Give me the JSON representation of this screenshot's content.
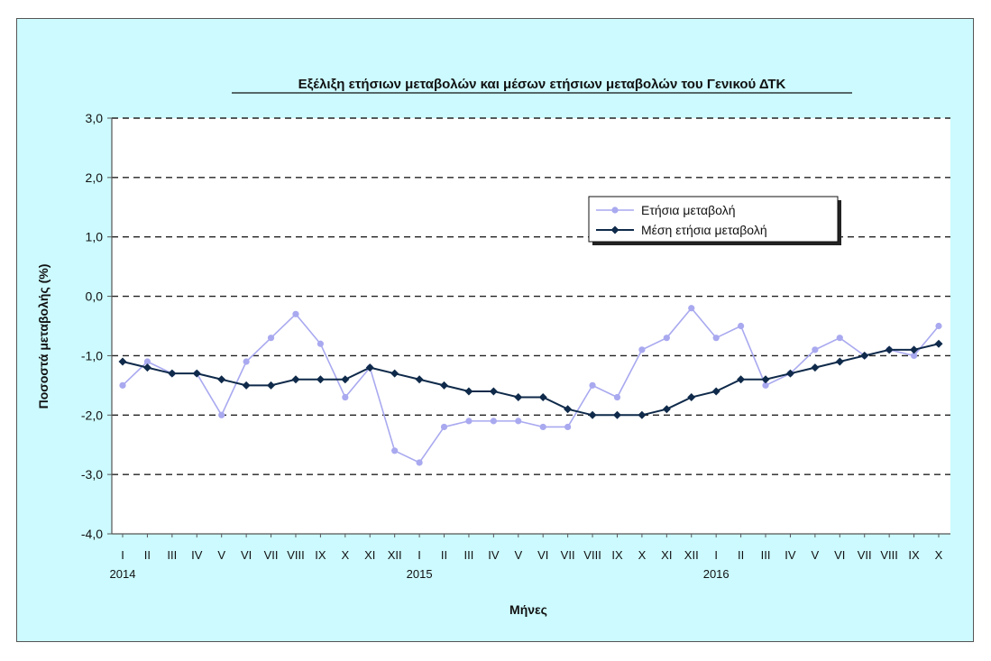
{
  "chart_data": {
    "type": "line",
    "title": "Εξέλιξη ετήσιων μεταβολών και μέσων ετήσιων μεταβολών του Γενικού ΔΤΚ",
    "xlabel": "Μήνες",
    "ylabel": "Ποσοστά μεταβολής (%)",
    "ylim": [
      -4.0,
      3.0
    ],
    "yticks": [
      "3,0",
      "2,0",
      "1,0",
      "0,0",
      "-1,0",
      "-2,0",
      "-3,0",
      "-4,0"
    ],
    "ytick_values": [
      3,
      2,
      1,
      0,
      -1,
      -2,
      -3,
      -4
    ],
    "grid": "horizontal dashed",
    "legend_position": "top-right",
    "x": [
      "I",
      "II",
      "III",
      "IV",
      "V",
      "VI",
      "VII",
      "VIII",
      "IX",
      "X",
      "XI",
      "XII",
      "I",
      "II",
      "III",
      "IV",
      "V",
      "VI",
      "VII",
      "VIII",
      "IX",
      "X",
      "XI",
      "XII",
      "I",
      "II",
      "III",
      "IV",
      "V",
      "VI",
      "VII",
      "VIII",
      "IX",
      "X"
    ],
    "years": [
      {
        "label": "2014",
        "index": 0
      },
      {
        "label": "2015",
        "index": 12
      },
      {
        "label": "2016",
        "index": 24
      }
    ],
    "series": [
      {
        "name": "Ετήσια μεταβολή",
        "color": "#a9a9f0",
        "values": [
          -1.5,
          -1.1,
          -1.3,
          -1.3,
          -2.0,
          -1.1,
          -0.7,
          -0.3,
          -0.8,
          -1.7,
          -1.2,
          -2.6,
          -2.8,
          -2.2,
          -2.1,
          -2.1,
          -2.1,
          -2.2,
          -2.2,
          -1.5,
          -1.7,
          -0.9,
          -0.7,
          -0.2,
          -0.7,
          -0.5,
          -1.5,
          -1.3,
          -0.9,
          -0.7,
          -1.0,
          -0.9,
          -1.0,
          -0.5
        ]
      },
      {
        "name": "Μέση ετήσια μεταβολή",
        "color": "#0f2a4a",
        "values": [
          -1.1,
          -1.2,
          -1.3,
          -1.3,
          -1.4,
          -1.5,
          -1.5,
          -1.4,
          -1.4,
          -1.4,
          -1.2,
          -1.3,
          -1.4,
          -1.5,
          -1.6,
          -1.6,
          -1.7,
          -1.7,
          -1.9,
          -2.0,
          -2.0,
          -2.0,
          -1.9,
          -1.7,
          -1.6,
          -1.4,
          -1.4,
          -1.3,
          -1.2,
          -1.1,
          -1.0,
          -0.9,
          -0.9,
          -0.8
        ]
      }
    ]
  }
}
